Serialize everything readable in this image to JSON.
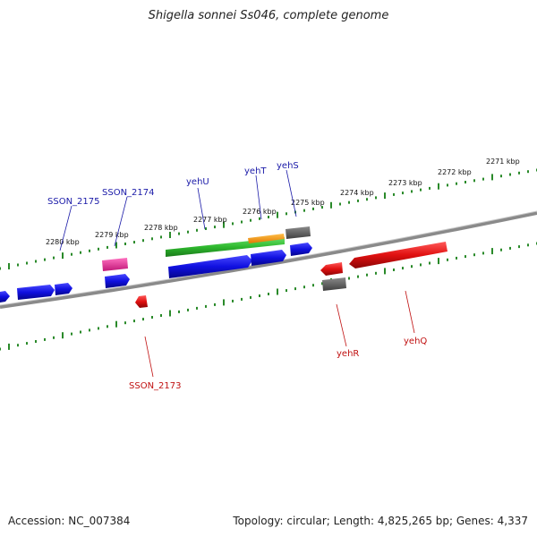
{
  "title": "Shigella sonnei Ss046, complete genome",
  "footer": {
    "accession": "Accession: NC_007384",
    "summary": "Topology: circular; Length: 4,825,265 bp; Genes: 4,337"
  },
  "colors": {
    "forward_cds": "#1010e0",
    "reverse_cds": "#e01010",
    "rna_magenta": "#e8389a",
    "gray_feature": "#606060",
    "green_feature": "#2eb82e",
    "orange_feature": "#f0900a",
    "backbone": "#8a8a8a",
    "ruler": "#2a8a2a",
    "label_blue": "#1a1aa8",
    "label_red": "#c01010"
  },
  "ruler_labels": [
    {
      "id": "2271",
      "text": "2271 kbp"
    },
    {
      "id": "2272",
      "text": "2272 kbp"
    },
    {
      "id": "2273",
      "text": "2273 kbp"
    },
    {
      "id": "2274",
      "text": "2274 kbp"
    },
    {
      "id": "2275",
      "text": "2275 kbp"
    },
    {
      "id": "2276",
      "text": "2276 kbp"
    },
    {
      "id": "2277",
      "text": "2277 kbp"
    },
    {
      "id": "2278",
      "text": "2278 kbp"
    },
    {
      "id": "2279",
      "text": "2279 kbp"
    },
    {
      "id": "2280",
      "text": "2280 kbp"
    }
  ],
  "gene_labels": {
    "SSON_2175": "SSON_2175",
    "SSON_2174": "SSON_2174",
    "yehU": "yehU",
    "yehT": "yehT",
    "yehS": "yehS",
    "SSON_2173": "SSON_2173",
    "yehR": "yehR",
    "yehQ": "yehQ"
  }
}
